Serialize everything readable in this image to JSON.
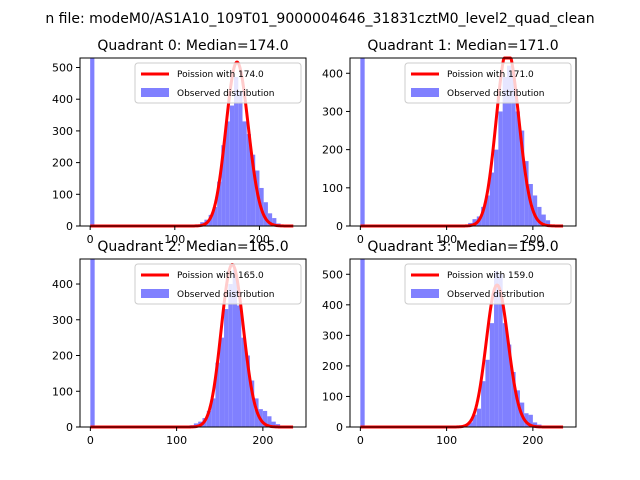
{
  "chart_data": {
    "type": "bar",
    "suptitle": "n file: modeM0/AS1A10_109T01_9000004646_31831cztM0_level2_quad_clean",
    "legend_position": "top-right",
    "legend_line_color": "#ff0000",
    "legend_bar_color": "#8080ff",
    "subplots": [
      {
        "title": "Quadrant 0: Median=174.0",
        "xlim": [
          -12,
          255
        ],
        "ylim": [
          0,
          530
        ],
        "xticks": [
          0,
          100,
          200
        ],
        "yticks": [
          0,
          100,
          200,
          300,
          400,
          500
        ],
        "poisson_mean": 174.0,
        "poisson_label": "Poission with 174.0",
        "hist_label": "Observed distribution",
        "hist_bins": [
          {
            "x": 0,
            "count": 530
          },
          {
            "x": 125,
            "count": 5
          },
          {
            "x": 130,
            "count": 12
          },
          {
            "x": 135,
            "count": 20
          },
          {
            "x": 140,
            "count": 35
          },
          {
            "x": 145,
            "count": 60
          },
          {
            "x": 150,
            "count": 140
          },
          {
            "x": 155,
            "count": 255
          },
          {
            "x": 160,
            "count": 330
          },
          {
            "x": 165,
            "count": 380
          },
          {
            "x": 170,
            "count": 470
          },
          {
            "x": 175,
            "count": 425
          },
          {
            "x": 180,
            "count": 330
          },
          {
            "x": 185,
            "count": 290
          },
          {
            "x": 190,
            "count": 225
          },
          {
            "x": 195,
            "count": 175
          },
          {
            "x": 200,
            "count": 120
          },
          {
            "x": 205,
            "count": 75
          },
          {
            "x": 210,
            "count": 40
          },
          {
            "x": 215,
            "count": 25
          },
          {
            "x": 220,
            "count": 8
          }
        ]
      },
      {
        "title": "Quadrant 1: Median=171.0",
        "xlim": [
          -12,
          250
        ],
        "ylim": [
          0,
          440
        ],
        "xticks": [
          0,
          100,
          200
        ],
        "yticks": [
          0,
          100,
          200,
          300,
          400
        ],
        "poisson_mean": 171.0,
        "poisson_label": "Poission with 171.0",
        "hist_label": "Observed distribution",
        "hist_bins": [
          {
            "x": 0,
            "count": 440
          },
          {
            "x": 125,
            "count": 8
          },
          {
            "x": 130,
            "count": 18
          },
          {
            "x": 135,
            "count": 25
          },
          {
            "x": 140,
            "count": 50
          },
          {
            "x": 145,
            "count": 80
          },
          {
            "x": 150,
            "count": 140
          },
          {
            "x": 155,
            "count": 200
          },
          {
            "x": 160,
            "count": 300
          },
          {
            "x": 165,
            "count": 390
          },
          {
            "x": 170,
            "count": 420
          },
          {
            "x": 175,
            "count": 400
          },
          {
            "x": 180,
            "count": 300
          },
          {
            "x": 185,
            "count": 250
          },
          {
            "x": 190,
            "count": 170
          },
          {
            "x": 195,
            "count": 110
          },
          {
            "x": 200,
            "count": 80
          },
          {
            "x": 205,
            "count": 50
          },
          {
            "x": 210,
            "count": 30
          },
          {
            "x": 215,
            "count": 15
          }
        ]
      },
      {
        "title": "Quadrant 2: Median=165.0",
        "xlim": [
          -12,
          250
        ],
        "ylim": [
          0,
          470
        ],
        "xticks": [
          0,
          100,
          200
        ],
        "yticks": [
          0,
          100,
          200,
          300,
          400
        ],
        "poisson_mean": 165.0,
        "poisson_label": "Poission with 165.0",
        "hist_label": "Observed distribution",
        "hist_bins": [
          {
            "x": 0,
            "count": 470
          },
          {
            "x": 115,
            "count": 5
          },
          {
            "x": 120,
            "count": 10
          },
          {
            "x": 125,
            "count": 15
          },
          {
            "x": 130,
            "count": 25
          },
          {
            "x": 135,
            "count": 45
          },
          {
            "x": 140,
            "count": 80
          },
          {
            "x": 145,
            "count": 180
          },
          {
            "x": 150,
            "count": 250
          },
          {
            "x": 155,
            "count": 330
          },
          {
            "x": 160,
            "count": 400
          },
          {
            "x": 165,
            "count": 440
          },
          {
            "x": 170,
            "count": 340
          },
          {
            "x": 175,
            "count": 250
          },
          {
            "x": 180,
            "count": 200
          },
          {
            "x": 185,
            "count": 130
          },
          {
            "x": 190,
            "count": 80
          },
          {
            "x": 195,
            "count": 50
          },
          {
            "x": 200,
            "count": 45
          },
          {
            "x": 205,
            "count": 30
          },
          {
            "x": 210,
            "count": 15
          },
          {
            "x": 215,
            "count": 8
          }
        ]
      },
      {
        "title": "Quadrant 3: Median=159.0",
        "xlim": [
          -12,
          250
        ],
        "ylim": [
          0,
          550
        ],
        "xticks": [
          0,
          100,
          200
        ],
        "yticks": [
          0,
          100,
          200,
          300,
          400,
          500
        ],
        "poisson_mean": 159.0,
        "poisson_label": "Poission with 159.0",
        "hist_label": "Observed distribution",
        "hist_bins": [
          {
            "x": 0,
            "count": 550
          },
          {
            "x": 120,
            "count": 5
          },
          {
            "x": 125,
            "count": 15
          },
          {
            "x": 130,
            "count": 40
          },
          {
            "x": 135,
            "count": 60
          },
          {
            "x": 140,
            "count": 150
          },
          {
            "x": 145,
            "count": 220
          },
          {
            "x": 150,
            "count": 340
          },
          {
            "x": 155,
            "count": 510
          },
          {
            "x": 160,
            "count": 500
          },
          {
            "x": 165,
            "count": 340
          },
          {
            "x": 170,
            "count": 270
          },
          {
            "x": 175,
            "count": 180
          },
          {
            "x": 180,
            "count": 120
          },
          {
            "x": 185,
            "count": 80
          },
          {
            "x": 190,
            "count": 45
          },
          {
            "x": 195,
            "count": 40
          },
          {
            "x": 200,
            "count": 15
          },
          {
            "x": 205,
            "count": 8
          }
        ]
      }
    ]
  }
}
